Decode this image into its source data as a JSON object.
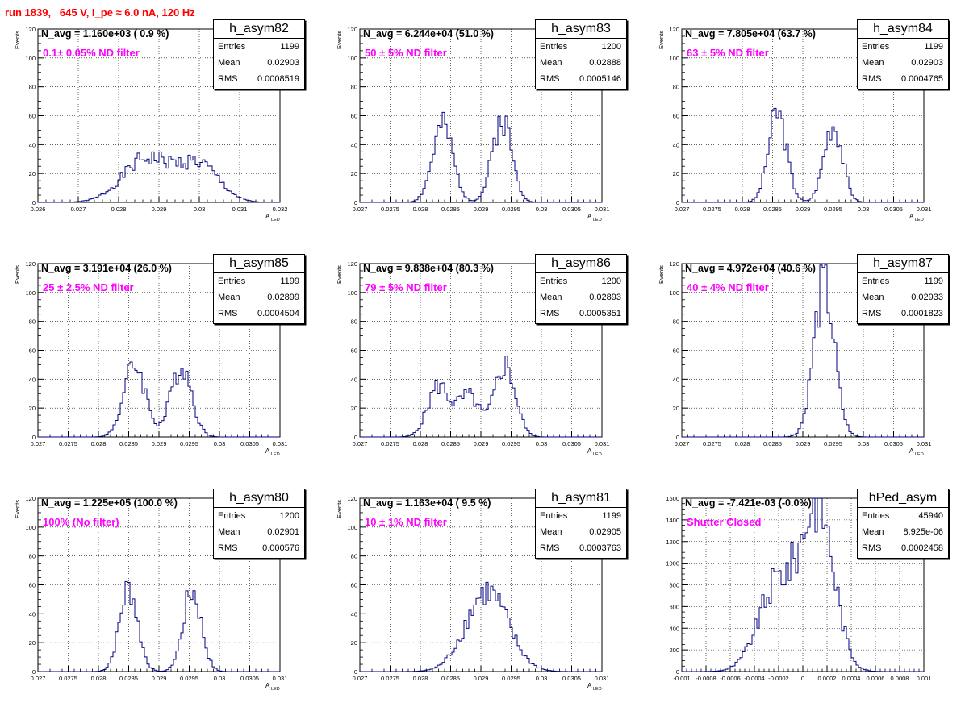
{
  "header": {
    "run_info": "run 1839,   645 V, I_pe ≈ 6.0 nA, 120 Hz"
  },
  "colors": {
    "title": "#ff0000",
    "annotation": "#ff00ff",
    "histogram": "#000080",
    "grid": "#000000"
  },
  "stat_labels": {
    "entries": "Entries",
    "mean": "Mean",
    "rms": "RMS"
  },
  "chart_data": [
    {
      "type": "histogram",
      "name": "h_asym82",
      "navg": "N_avg = 1.160e+03 ( 0.9 %)",
      "note": "0.1± 0.05% ND filter",
      "stats": {
        "entries": "1199",
        "mean": "0.02903",
        "rms": "0.0008519"
      },
      "xlim": [
        0.026,
        0.032
      ],
      "ylim": [
        0,
        120
      ],
      "xticks": [
        "0.026",
        "0.027",
        "0.028",
        "0.029",
        "0.03",
        "0.031",
        "0.032"
      ],
      "yticks": [
        "0",
        "20",
        "40",
        "60",
        "80",
        "100",
        "120"
      ],
      "xlabel": "A",
      "xlabel_sub": "LED",
      "ylabel": "Events",
      "peaks": [
        [
          0.0287,
          0.0006,
          30
        ],
        [
          0.03,
          0.0005,
          25
        ]
      ],
      "grid": true
    },
    {
      "type": "histogram",
      "name": "h_asym83",
      "navg": "N_avg = 6.244e+04 (51.0 %)",
      "note": "50 ± 5% ND filter",
      "stats": {
        "entries": "1200",
        "mean": "0.02888",
        "rms": "0.0005146"
      },
      "xlim": [
        0.027,
        0.031
      ],
      "ylim": [
        0,
        120
      ],
      "xticks": [
        "0.027",
        "0.0275",
        "0.028",
        "0.0285",
        "0.029",
        "0.0295",
        "0.03",
        "0.0305",
        "0.031"
      ],
      "yticks": [
        "0",
        "20",
        "40",
        "60",
        "80",
        "100",
        "120"
      ],
      "xlabel": "A",
      "xlabel_sub": "LED",
      "ylabel": "Events",
      "peaks": [
        [
          0.02837,
          0.00017,
          52
        ],
        [
          0.02935,
          0.00016,
          58
        ]
      ],
      "grid": true
    },
    {
      "type": "histogram",
      "name": "h_asym84",
      "navg": "N_avg = 7.805e+04 (63.7 %)",
      "note": "63 ± 5% ND filter",
      "stats": {
        "entries": "1199",
        "mean": "0.02903",
        "rms": "0.0004765"
      },
      "xlim": [
        0.027,
        0.031
      ],
      "ylim": [
        0,
        120
      ],
      "xticks": [
        "0.027",
        "0.0275",
        "0.028",
        "0.0285",
        "0.029",
        "0.0295",
        "0.03",
        "0.0305",
        "0.031"
      ],
      "yticks": [
        "0",
        "20",
        "40",
        "60",
        "80",
        "100",
        "120"
      ],
      "xlabel": "A",
      "xlabel_sub": "LED",
      "ylabel": "Events",
      "peaks": [
        [
          0.02858,
          0.00015,
          62
        ],
        [
          0.0295,
          0.00015,
          55
        ]
      ],
      "grid": true
    },
    {
      "type": "histogram",
      "name": "h_asym85",
      "navg": "N_avg = 3.191e+04 (26.0 %)",
      "note": "25 ± 2.5% ND filter",
      "stats": {
        "entries": "1199",
        "mean": "0.02899",
        "rms": "0.0004504"
      },
      "xlim": [
        0.027,
        0.031
      ],
      "ylim": [
        0,
        120
      ],
      "xticks": [
        "0.027",
        "0.0275",
        "0.028",
        "0.0285",
        "0.029",
        "0.0295",
        "0.03",
        "0.0305",
        "0.031"
      ],
      "yticks": [
        "0",
        "20",
        "40",
        "60",
        "80",
        "100",
        "120"
      ],
      "xlabel": "A",
      "xlabel_sub": "LED",
      "ylabel": "Events",
      "peaks": [
        [
          0.0286,
          0.00018,
          50
        ],
        [
          0.02937,
          0.00017,
          50
        ]
      ],
      "grid": true
    },
    {
      "type": "histogram",
      "name": "h_asym86",
      "navg": "N_avg = 9.838e+04 (80.3 %)",
      "note": "79 ± 5% ND filter",
      "stats": {
        "entries": "1200",
        "mean": "0.02893",
        "rms": "0.0005351"
      },
      "xlim": [
        0.027,
        0.031
      ],
      "ylim": [
        0,
        120
      ],
      "xticks": [
        "0.027",
        "0.0275",
        "0.028",
        "0.0285",
        "0.029",
        "0.0295",
        "0.03",
        "0.0305",
        "0.031"
      ],
      "yticks": [
        "0",
        "20",
        "40",
        "60",
        "80",
        "100",
        "120"
      ],
      "xlabel": "A",
      "xlabel_sub": "LED",
      "ylabel": "Events",
      "peaks": [
        [
          0.0283,
          0.00018,
          35
        ],
        [
          0.0288,
          0.00018,
          28
        ],
        [
          0.0294,
          0.00017,
          50
        ]
      ],
      "grid": true
    },
    {
      "type": "histogram",
      "name": "h_asym87",
      "navg": "N_avg = 4.972e+04 (40.6 %)",
      "note": "40 ± 4% ND filter",
      "stats": {
        "entries": "1199",
        "mean": "0.02933",
        "rms": "0.0001823"
      },
      "xlim": [
        0.027,
        0.031
      ],
      "ylim": [
        0,
        120
      ],
      "xticks": [
        "0.027",
        "0.0275",
        "0.028",
        "0.0285",
        "0.029",
        "0.0295",
        "0.03",
        "0.0305",
        "0.031"
      ],
      "yticks": [
        "0",
        "20",
        "40",
        "60",
        "80",
        "100",
        "120"
      ],
      "xlabel": "A",
      "xlabel_sub": "LED",
      "ylabel": "Events",
      "peaks": [
        [
          0.02935,
          0.00017,
          105
        ]
      ],
      "grid": true
    },
    {
      "type": "histogram",
      "name": "h_asym80",
      "navg": "N_avg = 1.225e+05 (100.0 %)",
      "note": "100% (No filter)",
      "stats": {
        "entries": "1200",
        "mean": "0.02901",
        "rms": "0.000576"
      },
      "xlim": [
        0.027,
        0.031
      ],
      "ylim": [
        0,
        120
      ],
      "xticks": [
        "0.027",
        "0.0275",
        "0.028",
        "0.0285",
        "0.029",
        "0.0295",
        "0.03",
        "0.0305",
        "0.031"
      ],
      "yticks": [
        "0",
        "20",
        "40",
        "60",
        "80",
        "100",
        "120"
      ],
      "xlabel": "A",
      "xlabel_sub": "LED",
      "ylabel": "Events",
      "peaks": [
        [
          0.0285,
          0.00015,
          58
        ],
        [
          0.02955,
          0.00015,
          56
        ]
      ],
      "grid": true
    },
    {
      "type": "histogram",
      "name": "h_asym81",
      "navg": "N_avg = 1.163e+04 ( 9.5 %)",
      "note": "10 ± 1% ND filter",
      "stats": {
        "entries": "1199",
        "mean": "0.02905",
        "rms": "0.0003763"
      },
      "xlim": [
        0.027,
        0.031
      ],
      "ylim": [
        0,
        120
      ],
      "xticks": [
        "0.027",
        "0.0275",
        "0.028",
        "0.0285",
        "0.029",
        "0.0295",
        "0.03",
        "0.0305",
        "0.031"
      ],
      "yticks": [
        "0",
        "20",
        "40",
        "60",
        "80",
        "100",
        "120"
      ],
      "xlabel": "A",
      "xlabel_sub": "LED",
      "ylabel": "Events",
      "peaks": [
        [
          0.0291,
          0.00035,
          55
        ]
      ],
      "grid": true
    },
    {
      "type": "histogram",
      "name": "hPed_asym",
      "navg": "N_avg = -7.421e-03 (-0.0%)",
      "note": "Shutter Closed",
      "stats": {
        "entries": "45940",
        "mean": "8.925e-06",
        "rms": "0.0002458"
      },
      "xlim": [
        -0.001,
        0.001
      ],
      "ylim": [
        0,
        1600
      ],
      "xticks": [
        "-0.001",
        "-0.0008",
        "-0.0006",
        "-0.0004",
        "-0.0002",
        "0",
        "0.0002",
        "0.0004",
        "0.0006",
        "0.0008",
        "0.001"
      ],
      "yticks": [
        "0",
        "200",
        "400",
        "600",
        "800",
        "1000",
        "1200",
        "1400",
        "1600"
      ],
      "xlabel": "",
      "xlabel_sub": "",
      "ylabel": "",
      "peaks": [
        [
          -0.0002,
          0.00016,
          820
        ],
        [
          0.00013,
          0.00013,
          1480
        ]
      ],
      "grid": true
    }
  ]
}
